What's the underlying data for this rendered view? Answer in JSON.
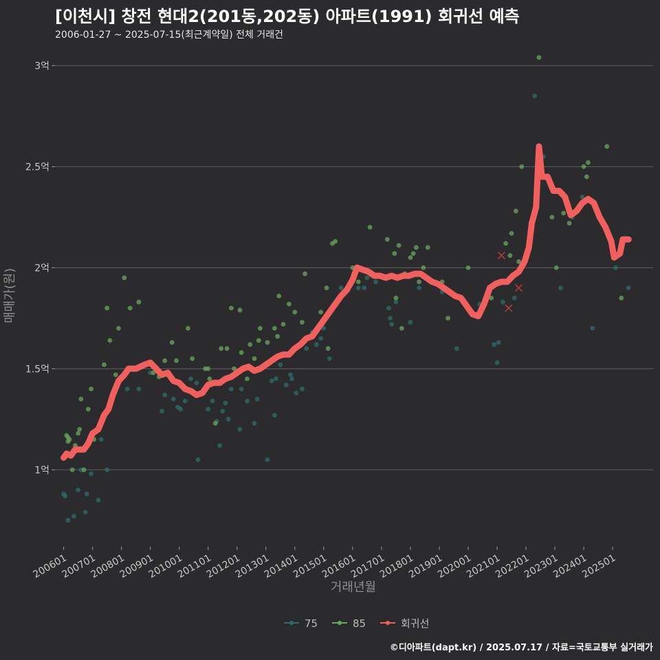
{
  "title": "[이천시] 창전 현대2(201동,202동) 아파트(1991) 회귀선 예측",
  "subtitle": "2006-01-27 ~ 2025-07-15(최근계약일) 전체 거래건",
  "caption": "©디아파트(dapt.kr) / 2025.07.17 / 자료=국토교통부 실거래가",
  "colors": {
    "s75": "#2e6d6b",
    "s85": "#6aa85c",
    "regression": "#f2605e",
    "background": "#2b2a2c",
    "grid": "#5e5e5e"
  },
  "chart_data": {
    "type": "scatter",
    "xlabel": "거래년월",
    "ylabel": "매매가(원)",
    "ylim": [
      0.62,
      3.1
    ],
    "y_ticks": [
      {
        "value": 1.0,
        "label": "1억"
      },
      {
        "value": 1.5,
        "label": "1.5억"
      },
      {
        "value": 2.0,
        "label": "2억"
      },
      {
        "value": 2.5,
        "label": "2.5억"
      },
      {
        "value": 3.0,
        "label": "3억"
      }
    ],
    "x_range": [
      2005.7,
      2026.4
    ],
    "x_ticks": [
      {
        "value": 2006.0,
        "label": "200601"
      },
      {
        "value": 2007.0,
        "label": "200701"
      },
      {
        "value": 2008.0,
        "label": "200801"
      },
      {
        "value": 2009.0,
        "label": "200901"
      },
      {
        "value": 2010.0,
        "label": "201001"
      },
      {
        "value": 2011.0,
        "label": "201101"
      },
      {
        "value": 2012.0,
        "label": "201201"
      },
      {
        "value": 2013.0,
        "label": "201301"
      },
      {
        "value": 2014.0,
        "label": "201401"
      },
      {
        "value": 2015.0,
        "label": "201501"
      },
      {
        "value": 2016.0,
        "label": "201601"
      },
      {
        "value": 2017.0,
        "label": "201701"
      },
      {
        "value": 2018.0,
        "label": "201801"
      },
      {
        "value": 2019.0,
        "label": "201901"
      },
      {
        "value": 2020.0,
        "label": "202001"
      },
      {
        "value": 2021.0,
        "label": "202101"
      },
      {
        "value": 2022.0,
        "label": "202201"
      },
      {
        "value": 2023.0,
        "label": "202301"
      },
      {
        "value": 2024.0,
        "label": "202401"
      },
      {
        "value": 2025.0,
        "label": "202501"
      }
    ],
    "legend": [
      {
        "name": "75",
        "color": "#2e6d6b",
        "kind": "point"
      },
      {
        "name": "85",
        "color": "#6aa85c",
        "kind": "point"
      },
      {
        "name": "회귀선",
        "color": "#f2605e",
        "kind": "line"
      }
    ],
    "legend_position": "bottom",
    "series": [
      {
        "name": "75",
        "points": [
          [
            2006.0,
            0.88
          ],
          [
            2006.05,
            0.87
          ],
          [
            2006.15,
            0.75
          ],
          [
            2006.35,
            0.77
          ],
          [
            2006.5,
            0.9
          ],
          [
            2006.6,
            1.0
          ],
          [
            2006.75,
            0.79
          ],
          [
            2006.8,
            0.88
          ],
          [
            2006.95,
            0.98
          ],
          [
            2007.2,
            0.85
          ],
          [
            2007.3,
            1.15
          ],
          [
            2007.5,
            1.0
          ],
          [
            2008.2,
            1.4
          ],
          [
            2008.6,
            1.4
          ],
          [
            2009.0,
            1.48
          ],
          [
            2009.4,
            1.29
          ],
          [
            2009.5,
            1.37
          ],
          [
            2009.8,
            1.35
          ],
          [
            2009.95,
            1.31
          ],
          [
            2010.05,
            1.3
          ],
          [
            2010.2,
            1.34
          ],
          [
            2010.3,
            1.4
          ],
          [
            2010.4,
            1.45
          ],
          [
            2010.6,
            1.43
          ],
          [
            2010.65,
            1.05
          ],
          [
            2010.85,
            1.38
          ],
          [
            2011.0,
            1.3
          ],
          [
            2011.15,
            1.34
          ],
          [
            2011.3,
            1.24
          ],
          [
            2011.4,
            1.12
          ],
          [
            2011.5,
            1.29
          ],
          [
            2011.6,
            1.33
          ],
          [
            2011.7,
            1.25
          ],
          [
            2011.8,
            1.4
          ],
          [
            2012.1,
            1.2
          ],
          [
            2012.15,
            1.4
          ],
          [
            2012.35,
            1.34
          ],
          [
            2012.5,
            1.5
          ],
          [
            2012.6,
            1.23
          ],
          [
            2012.7,
            1.35
          ],
          [
            2012.85,
            1.5
          ],
          [
            2013.05,
            1.05
          ],
          [
            2013.2,
            1.44
          ],
          [
            2013.3,
            1.27
          ],
          [
            2013.35,
            1.45
          ],
          [
            2013.5,
            1.52
          ],
          [
            2013.7,
            1.42
          ],
          [
            2013.85,
            1.47
          ],
          [
            2013.9,
            1.45
          ],
          [
            2014.05,
            1.38
          ],
          [
            2014.25,
            1.4
          ],
          [
            2014.4,
            1.6
          ],
          [
            2014.6,
            1.68
          ],
          [
            2014.75,
            1.62
          ],
          [
            2014.9,
            1.65
          ],
          [
            2015.0,
            1.7
          ],
          [
            2015.2,
            1.55
          ],
          [
            2015.6,
            1.9
          ],
          [
            2016.2,
            1.9
          ],
          [
            2016.4,
            1.9
          ],
          [
            2016.5,
            1.95
          ],
          [
            2016.8,
            1.93
          ],
          [
            2017.25,
            1.8
          ],
          [
            2017.3,
            1.75
          ],
          [
            2017.35,
            1.72
          ],
          [
            2017.5,
            1.83
          ],
          [
            2018.0,
            1.73
          ],
          [
            2018.3,
            1.9
          ],
          [
            2019.1,
            1.88
          ],
          [
            2019.6,
            1.6
          ],
          [
            2020.4,
            1.82
          ],
          [
            2020.9,
            1.62
          ],
          [
            2021.0,
            1.53
          ],
          [
            2021.05,
            1.63
          ],
          [
            2021.2,
            1.83
          ],
          [
            2021.6,
            1.85
          ],
          [
            2022.3,
            2.85
          ],
          [
            2022.6,
            2.55
          ],
          [
            2023.2,
            1.9
          ],
          [
            2023.5,
            2.28
          ],
          [
            2023.6,
            2.25
          ],
          [
            2023.95,
            2.35
          ],
          [
            2024.3,
            1.7
          ],
          [
            2025.1,
            2.0
          ],
          [
            2025.55,
            1.9
          ]
        ]
      },
      {
        "name": "85",
        "points": [
          [
            2006.1,
            1.17
          ],
          [
            2006.15,
            1.16
          ],
          [
            2006.15,
            1.14
          ],
          [
            2006.2,
            1.15
          ],
          [
            2006.3,
            1.0
          ],
          [
            2006.4,
            1.12
          ],
          [
            2006.5,
            1.18
          ],
          [
            2006.55,
            1.2
          ],
          [
            2006.6,
            1.35
          ],
          [
            2006.7,
            1.0
          ],
          [
            2006.85,
            1.3
          ],
          [
            2006.95,
            1.4
          ],
          [
            2007.05,
            1.15
          ],
          [
            2007.4,
            1.52
          ],
          [
            2007.5,
            1.8
          ],
          [
            2007.6,
            1.64
          ],
          [
            2007.8,
            1.47
          ],
          [
            2007.9,
            1.7
          ],
          [
            2008.1,
            1.95
          ],
          [
            2008.3,
            1.8
          ],
          [
            2008.6,
            1.83
          ],
          [
            2008.95,
            1.53
          ],
          [
            2009.1,
            1.48
          ],
          [
            2009.3,
            1.46
          ],
          [
            2009.5,
            1.54
          ],
          [
            2009.75,
            1.63
          ],
          [
            2009.9,
            1.54
          ],
          [
            2010.3,
            1.7
          ],
          [
            2010.45,
            1.55
          ],
          [
            2010.9,
            1.5
          ],
          [
            2011.0,
            1.5
          ],
          [
            2011.05,
            1.45
          ],
          [
            2011.25,
            1.23
          ],
          [
            2011.45,
            1.6
          ],
          [
            2011.65,
            1.6
          ],
          [
            2011.8,
            1.8
          ],
          [
            2011.9,
            1.5
          ],
          [
            2012.1,
            1.79
          ],
          [
            2012.15,
            1.58
          ],
          [
            2012.35,
            1.45
          ],
          [
            2012.45,
            1.62
          ],
          [
            2012.6,
            1.55
          ],
          [
            2012.75,
            1.64
          ],
          [
            2012.8,
            1.7
          ],
          [
            2013.05,
            1.63
          ],
          [
            2013.3,
            1.7
          ],
          [
            2013.4,
            1.66
          ],
          [
            2013.45,
            1.86
          ],
          [
            2013.6,
            1.72
          ],
          [
            2013.8,
            1.82
          ],
          [
            2014.0,
            1.78
          ],
          [
            2014.25,
            1.73
          ],
          [
            2014.35,
            1.97
          ],
          [
            2014.9,
            1.78
          ],
          [
            2015.1,
            1.9
          ],
          [
            2015.15,
            1.6
          ],
          [
            2015.3,
            2.12
          ],
          [
            2015.4,
            2.13
          ],
          [
            2016.0,
            2.0
          ],
          [
            2016.2,
            1.93
          ],
          [
            2016.6,
            2.2
          ],
          [
            2017.1,
            1.95
          ],
          [
            2017.2,
            2.14
          ],
          [
            2017.45,
            2.07
          ],
          [
            2017.5,
            1.85
          ],
          [
            2017.6,
            2.11
          ],
          [
            2017.7,
            1.7
          ],
          [
            2017.8,
            1.97
          ],
          [
            2018.0,
            2.05
          ],
          [
            2018.1,
            2.07
          ],
          [
            2018.2,
            2.1
          ],
          [
            2018.3,
            1.93
          ],
          [
            2018.45,
            2.0
          ],
          [
            2018.6,
            2.1
          ],
          [
            2019.1,
            1.93
          ],
          [
            2019.2,
            1.9
          ],
          [
            2019.3,
            1.75
          ],
          [
            2020.0,
            2.0
          ],
          [
            2020.8,
            1.85
          ],
          [
            2021.3,
            2.12
          ],
          [
            2021.45,
            2.06
          ],
          [
            2021.5,
            2.17
          ],
          [
            2021.65,
            2.28
          ],
          [
            2021.75,
            2.03
          ],
          [
            2021.85,
            2.5
          ],
          [
            2022.45,
            3.04
          ],
          [
            2022.7,
            2.45
          ],
          [
            2022.9,
            2.25
          ],
          [
            2023.05,
            2.0
          ],
          [
            2023.3,
            2.27
          ],
          [
            2023.5,
            2.22
          ],
          [
            2024.0,
            2.5
          ],
          [
            2024.1,
            2.45
          ],
          [
            2024.15,
            2.52
          ],
          [
            2024.8,
            2.6
          ],
          [
            2025.3,
            1.85
          ]
        ]
      }
    ],
    "cancelled_points": [
      [
        2021.15,
        2.06
      ],
      [
        2021.4,
        1.8
      ],
      [
        2021.75,
        1.9
      ]
    ],
    "regression": [
      [
        2006.0,
        1.06
      ],
      [
        2006.1,
        1.08
      ],
      [
        2006.25,
        1.07
      ],
      [
        2006.4,
        1.1
      ],
      [
        2006.55,
        1.1
      ],
      [
        2006.7,
        1.1
      ],
      [
        2006.85,
        1.13
      ],
      [
        2007.0,
        1.18
      ],
      [
        2007.2,
        1.2
      ],
      [
        2007.4,
        1.27
      ],
      [
        2007.55,
        1.3
      ],
      [
        2007.7,
        1.37
      ],
      [
        2007.9,
        1.44
      ],
      [
        2008.1,
        1.47
      ],
      [
        2008.25,
        1.5
      ],
      [
        2008.5,
        1.5
      ],
      [
        2008.8,
        1.52
      ],
      [
        2009.0,
        1.53
      ],
      [
        2009.2,
        1.5
      ],
      [
        2009.4,
        1.47
      ],
      [
        2009.6,
        1.48
      ],
      [
        2009.8,
        1.44
      ],
      [
        2010.0,
        1.43
      ],
      [
        2010.2,
        1.4
      ],
      [
        2010.4,
        1.39
      ],
      [
        2010.6,
        1.37
      ],
      [
        2010.8,
        1.38
      ],
      [
        2011.0,
        1.42
      ],
      [
        2011.2,
        1.43
      ],
      [
        2011.4,
        1.43
      ],
      [
        2011.6,
        1.45
      ],
      [
        2011.8,
        1.46
      ],
      [
        2012.0,
        1.48
      ],
      [
        2012.2,
        1.5
      ],
      [
        2012.4,
        1.51
      ],
      [
        2012.6,
        1.49
      ],
      [
        2012.8,
        1.5
      ],
      [
        2013.0,
        1.52
      ],
      [
        2013.2,
        1.54
      ],
      [
        2013.4,
        1.56
      ],
      [
        2013.6,
        1.57
      ],
      [
        2013.8,
        1.57
      ],
      [
        2014.0,
        1.6
      ],
      [
        2014.2,
        1.62
      ],
      [
        2014.4,
        1.65
      ],
      [
        2014.6,
        1.66
      ],
      [
        2014.8,
        1.7
      ],
      [
        2015.0,
        1.74
      ],
      [
        2015.2,
        1.78
      ],
      [
        2015.4,
        1.82
      ],
      [
        2015.6,
        1.86
      ],
      [
        2015.8,
        1.89
      ],
      [
        2016.0,
        1.94
      ],
      [
        2016.15,
        2.0
      ],
      [
        2016.35,
        1.99
      ],
      [
        2016.55,
        1.98
      ],
      [
        2016.75,
        1.96
      ],
      [
        2016.95,
        1.96
      ],
      [
        2017.15,
        1.95
      ],
      [
        2017.35,
        1.96
      ],
      [
        2017.55,
        1.95
      ],
      [
        2017.75,
        1.96
      ],
      [
        2017.95,
        1.96
      ],
      [
        2018.15,
        1.97
      ],
      [
        2018.35,
        1.97
      ],
      [
        2018.55,
        1.95
      ],
      [
        2018.75,
        1.93
      ],
      [
        2018.95,
        1.92
      ],
      [
        2019.15,
        1.9
      ],
      [
        2019.35,
        1.88
      ],
      [
        2019.55,
        1.86
      ],
      [
        2019.75,
        1.85
      ],
      [
        2019.95,
        1.81
      ],
      [
        2020.15,
        1.77
      ],
      [
        2020.35,
        1.76
      ],
      [
        2020.55,
        1.82
      ],
      [
        2020.75,
        1.9
      ],
      [
        2020.95,
        1.92
      ],
      [
        2021.15,
        1.93
      ],
      [
        2021.35,
        1.93
      ],
      [
        2021.55,
        1.96
      ],
      [
        2021.75,
        1.98
      ],
      [
        2021.95,
        2.03
      ],
      [
        2022.1,
        2.1
      ],
      [
        2022.2,
        2.22
      ],
      [
        2022.35,
        2.3
      ],
      [
        2022.45,
        2.6
      ],
      [
        2022.55,
        2.45
      ],
      [
        2022.75,
        2.45
      ],
      [
        2022.95,
        2.38
      ],
      [
        2023.15,
        2.38
      ],
      [
        2023.35,
        2.35
      ],
      [
        2023.55,
        2.26
      ],
      [
        2023.75,
        2.28
      ],
      [
        2023.95,
        2.32
      ],
      [
        2024.15,
        2.34
      ],
      [
        2024.35,
        2.32
      ],
      [
        2024.55,
        2.25
      ],
      [
        2024.75,
        2.2
      ],
      [
        2024.95,
        2.13
      ],
      [
        2025.05,
        2.05
      ],
      [
        2025.25,
        2.07
      ],
      [
        2025.35,
        2.14
      ],
      [
        2025.55,
        2.14
      ]
    ]
  }
}
